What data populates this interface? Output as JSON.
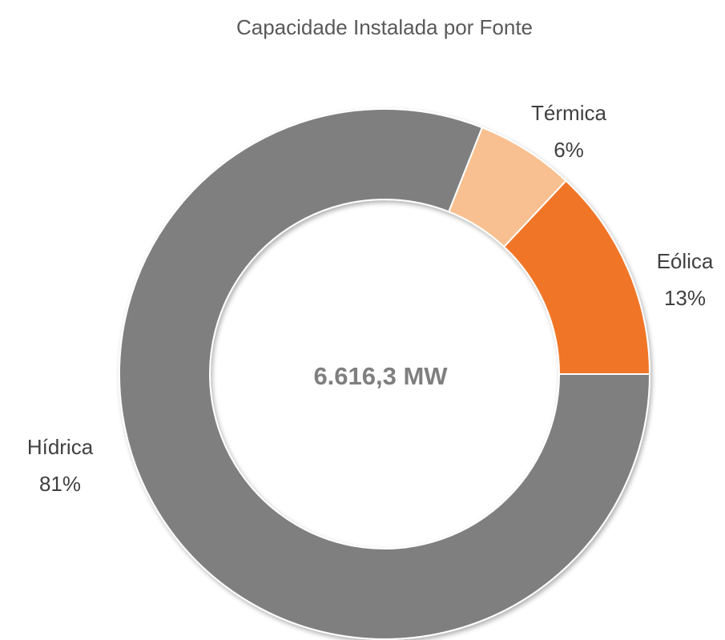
{
  "chart_data": {
    "type": "donut",
    "title": "Capacidade Instalada por Fonte",
    "center_label": "6.616,3 MW",
    "categories": [
      "Hídrica",
      "Térmica",
      "Eólica"
    ],
    "values": [
      81,
      6,
      13
    ],
    "value_labels": [
      "81%",
      "6%",
      "13%"
    ],
    "colors": [
      "#7f7f7f",
      "#f8c090",
      "#f07428"
    ]
  }
}
